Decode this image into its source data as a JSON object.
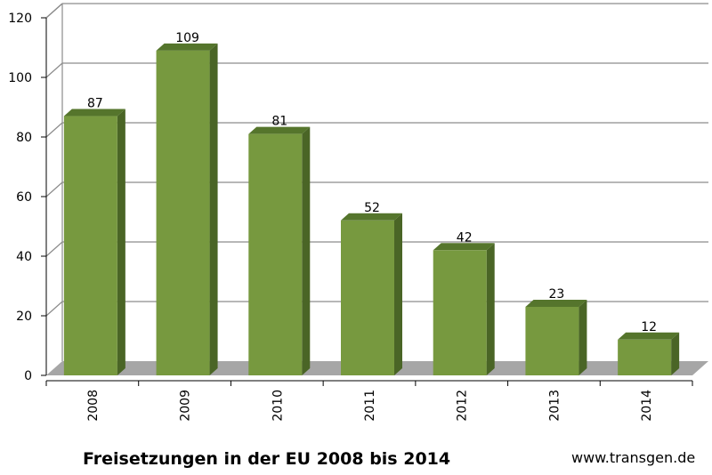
{
  "chart_data": {
    "type": "bar",
    "title": "Freisetzungen in der EU 2008 bis 2014",
    "categories": [
      "2008",
      "2009",
      "2010",
      "2011",
      "2012",
      "2013",
      "2014"
    ],
    "values": [
      87,
      109,
      81,
      52,
      42,
      23,
      12
    ],
    "ylim": [
      0,
      120
    ],
    "yticks": [
      "0",
      "20",
      "40",
      "60",
      "80",
      "100",
      "120"
    ],
    "grid": true,
    "style": "3d",
    "colors": {
      "bar_front": "#77993f",
      "bar_top": "#55752c",
      "bar_side": "#4a6526",
      "floor": "#a6a6a6",
      "grid": "#8c8c8c"
    }
  },
  "footer": {
    "title": "Freisetzungen in der EU 2008 bis 2014",
    "source": "www.transgen.de"
  }
}
